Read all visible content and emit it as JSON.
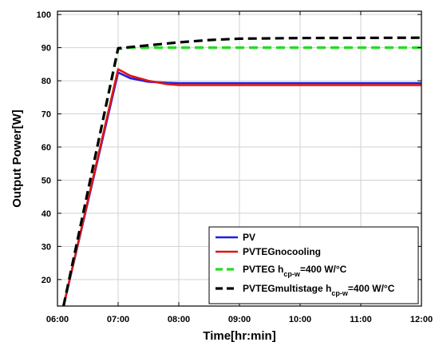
{
  "chart_data": {
    "type": "line",
    "xlabel": "Time[hr:min]",
    "ylabel": "Output Power[W]",
    "x_ticks": [
      "06:00",
      "07:00",
      "08:00",
      "09:00",
      "10:00",
      "11:00",
      "12:00"
    ],
    "y_ticks": [
      "20",
      "30",
      "40",
      "50",
      "60",
      "70",
      "80",
      "90",
      "100"
    ],
    "xlim": [
      6,
      12
    ],
    "ylim": [
      12,
      101
    ],
    "grid": true,
    "legend_position": "bottom-right",
    "series": [
      {
        "name": "PV",
        "color": "#1f1fdd",
        "dash": "solid",
        "points": [
          [
            6.1,
            12
          ],
          [
            7.0,
            82.5
          ],
          [
            7.2,
            80.8
          ],
          [
            7.5,
            79.7
          ],
          [
            7.8,
            79.4
          ],
          [
            8.0,
            79.3
          ],
          [
            12.0,
            79.3
          ]
        ]
      },
      {
        "name": "PVTEGnocooling",
        "color": "#e01515",
        "dash": "solid",
        "points": [
          [
            6.1,
            12
          ],
          [
            7.0,
            83.5
          ],
          [
            7.2,
            81.5
          ],
          [
            7.5,
            80.0
          ],
          [
            7.8,
            79.0
          ],
          [
            8.0,
            78.7
          ],
          [
            12.0,
            78.7
          ]
        ]
      },
      {
        "name_main": "PVTEG h",
        "name_sub": "cp-w",
        "name_tail": "=400 W/°C",
        "color": "#22dd22",
        "dash": "dashed",
        "points": [
          [
            6.1,
            12
          ],
          [
            7.0,
            89.6
          ],
          [
            7.2,
            90.0
          ],
          [
            12.0,
            90.0
          ]
        ]
      },
      {
        "name_main": "PVTEGmultistage h",
        "name_sub": "cp-w",
        "name_tail": "=400 W/°C",
        "color": "#000000",
        "dash": "dashed",
        "points": [
          [
            6.1,
            12
          ],
          [
            7.0,
            89.8
          ],
          [
            7.5,
            90.7
          ],
          [
            8.0,
            91.6
          ],
          [
            8.5,
            92.3
          ],
          [
            9.0,
            92.7
          ],
          [
            10.0,
            92.9
          ],
          [
            12.0,
            93.0
          ]
        ]
      }
    ]
  }
}
